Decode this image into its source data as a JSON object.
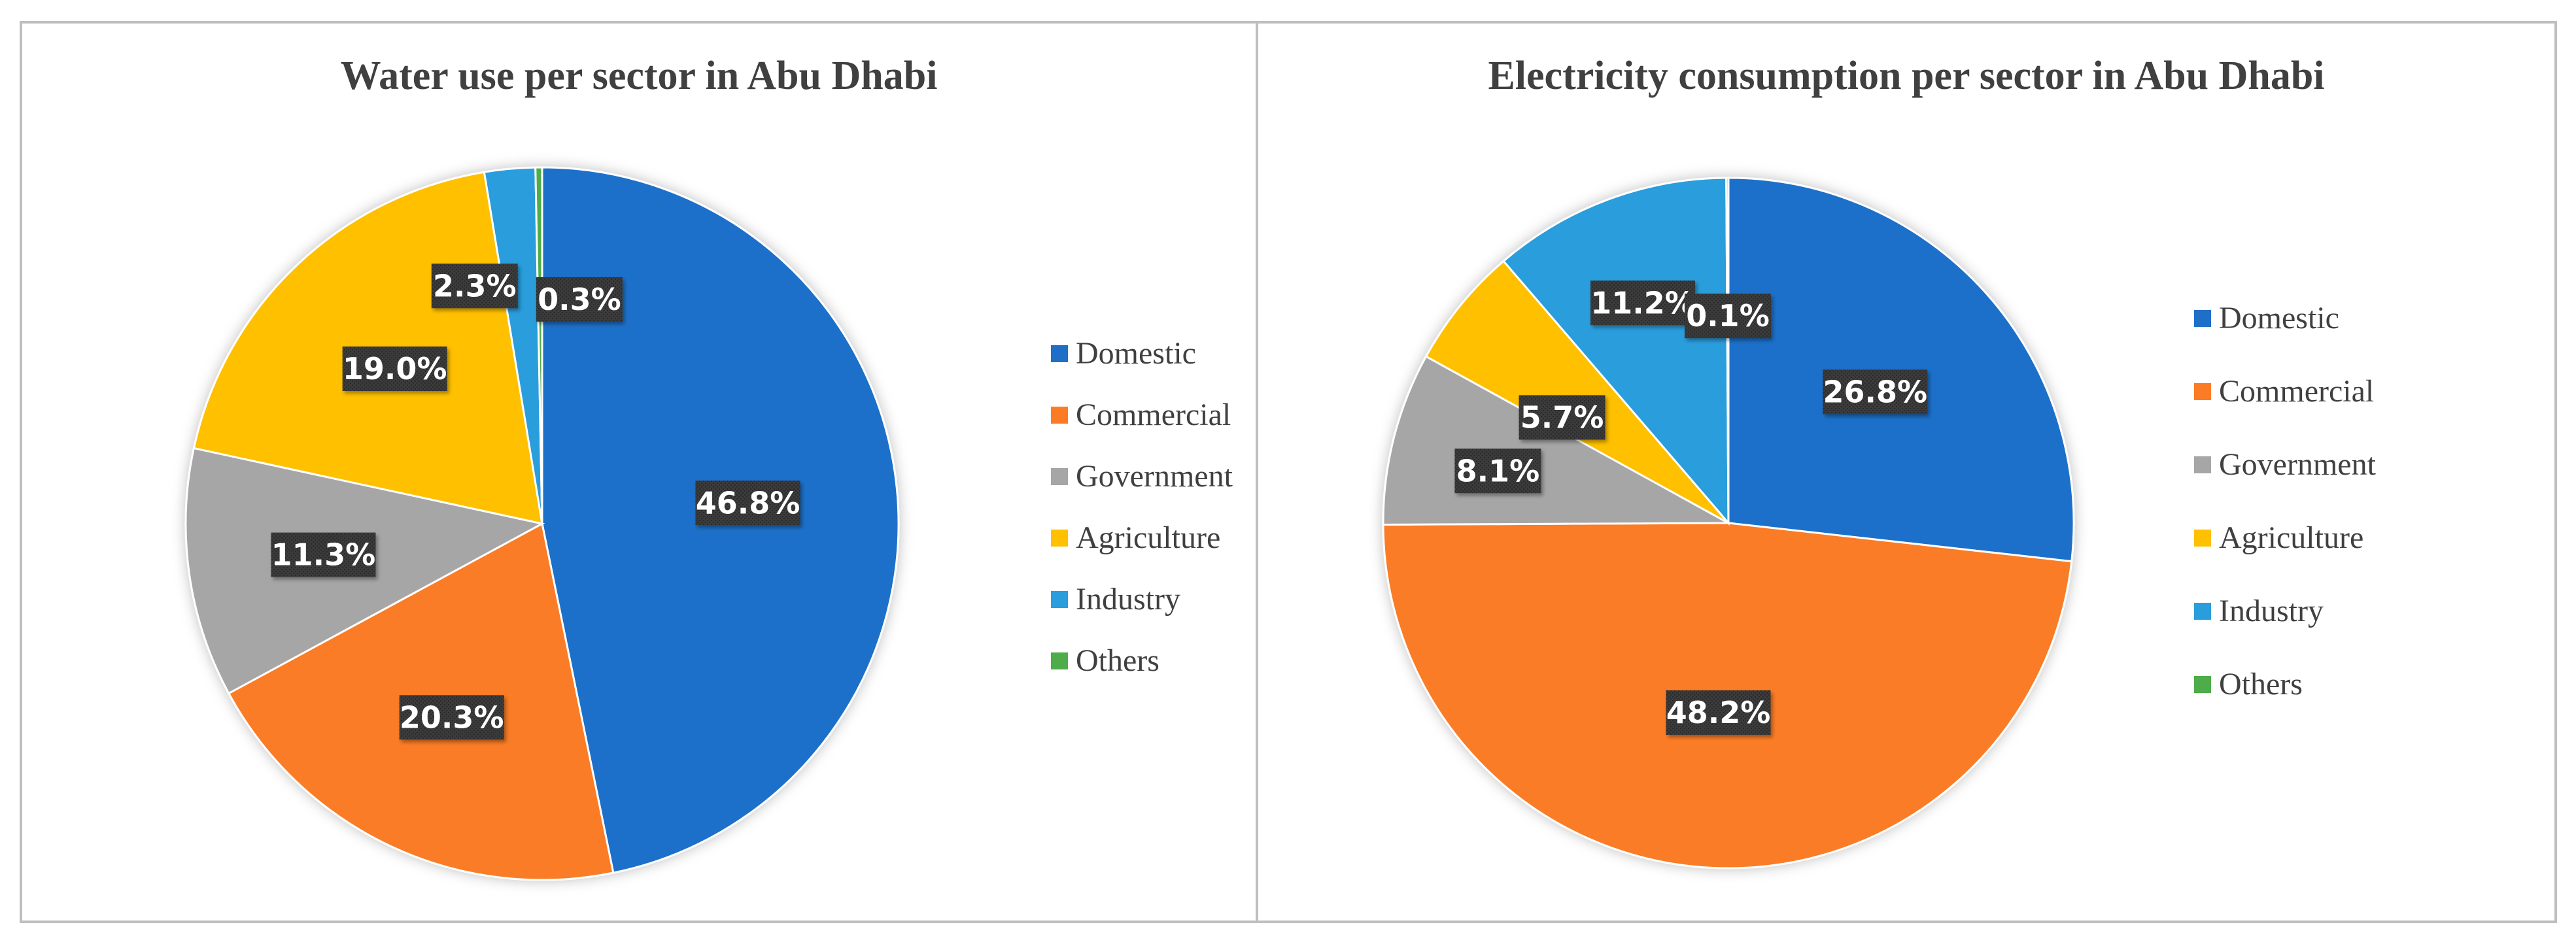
{
  "chart_data": [
    {
      "type": "pie",
      "title": "Water use per sector in Abu Dhabi",
      "categories": [
        "Domestic",
        "Commercial",
        "Government",
        "Agriculture",
        "Industry",
        "Others"
      ],
      "values": [
        46.8,
        20.3,
        11.3,
        19.0,
        2.3,
        0.3
      ],
      "data_labels": [
        "46.8%",
        "20.3%",
        "11.3%",
        "19.0%",
        "2.3%",
        "0.3%"
      ],
      "colors": [
        "#1f6fc9",
        "#fb7c25",
        "#a6a6a6",
        "#ffc000",
        "#2a9ddc",
        "#4ead4a"
      ],
      "legend": "right"
    },
    {
      "type": "pie",
      "title": "Electricity consumption per sector in Abu Dhabi",
      "categories": [
        "Domestic",
        "Commercial",
        "Government",
        "Agriculture",
        "Industry",
        "Others"
      ],
      "values": [
        26.8,
        48.2,
        8.1,
        5.7,
        11.2,
        0.1
      ],
      "data_labels": [
        "26.8%",
        "48.2%",
        "8.1%",
        "5.7%",
        "11.2%",
        "0.1%"
      ],
      "colors": [
        "#1f6fc9",
        "#fb7c25",
        "#a6a6a6",
        "#ffc000",
        "#2a9ddc",
        "#4ead4a"
      ],
      "legend": "right"
    }
  ]
}
